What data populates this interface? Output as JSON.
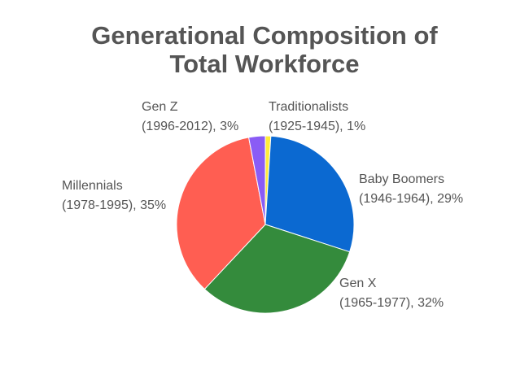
{
  "chart_data": {
    "type": "pie",
    "title_lines": [
      "Generational Composition of",
      "Total Workforce"
    ],
    "slices": [
      {
        "name": "Traditionalists",
        "range": "(1925-1945)",
        "value": 1,
        "value_label": "1%",
        "color": "#FFEB3B"
      },
      {
        "name": "Baby Boomers",
        "range": "(1946-1964)",
        "value": 29,
        "value_label": "29%",
        "color": "#0B69D1"
      },
      {
        "name": "Gen X",
        "range": "(1965-1977)",
        "value": 32,
        "value_label": "32%",
        "color": "#348B3C"
      },
      {
        "name": "Millennials",
        "range": "(1978-1995)",
        "value": 35,
        "value_label": "35%",
        "color": "#FF5E52"
      },
      {
        "name": "Gen Z",
        "range": "(1996-2012)",
        "value": 3,
        "value_label": "3%",
        "color": "#8A5CF5"
      }
    ],
    "legend": "none",
    "start_angle": "12 o'clock",
    "direction": "clockwise"
  }
}
